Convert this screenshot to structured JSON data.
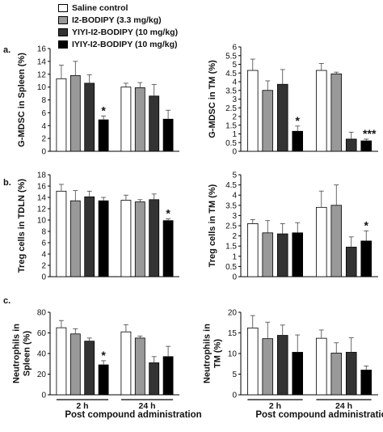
{
  "legend": [
    {
      "label": "Saline control",
      "color": "#ffffff"
    },
    {
      "label": "I2-BODIPY (3.3 mg/kg)",
      "color": "#999999"
    },
    {
      "label": "YIYI-I2-BODIPY (10 mg/kg)",
      "color": "#333333"
    },
    {
      "label": "IYIY-I2-BODIPY (10 mg/kg)",
      "color": "#000000"
    }
  ],
  "panel_letters": {
    "a": "a.",
    "b": "b.",
    "c": "c."
  },
  "x_caption": "Post compound administration",
  "chart_data": [
    {
      "type": "bar",
      "ylabel": "G-MDSC in Spleen (%)",
      "ylim": [
        0,
        16
      ],
      "yticks": [
        0,
        2,
        4,
        6,
        8,
        10,
        12,
        14,
        16
      ],
      "categories": [
        "",
        ""
      ],
      "x_tick_labels_shown": false,
      "series": [
        {
          "name": "Saline control",
          "color": "#ffffff",
          "values": [
            11.3,
            10.0
          ],
          "errors": [
            2.1,
            0.6
          ]
        },
        {
          "name": "I2-BODIPY (3.3 mg/kg)",
          "color": "#999999",
          "values": [
            11.8,
            9.9
          ],
          "errors": [
            2.2,
            0.8
          ]
        },
        {
          "name": "YIYI-I2-BODIPY (10 mg/kg)",
          "color": "#333333",
          "values": [
            10.6,
            8.6
          ],
          "errors": [
            1.3,
            1.8
          ]
        },
        {
          "name": "IYIY-I2-BODIPY (10 mg/kg)",
          "color": "#000000",
          "values": [
            4.9,
            5.0
          ],
          "errors": [
            0.6,
            1.4
          ]
        }
      ],
      "annotations": [
        {
          "group": 0,
          "series": 3,
          "text": "*"
        }
      ]
    },
    {
      "type": "bar",
      "ylabel": "G-MDSC in TM (%)",
      "ylim": [
        0,
        6
      ],
      "yticks": [
        0,
        0.5,
        1,
        1.5,
        2,
        2.5,
        3,
        3.5,
        4,
        4.5,
        5,
        5.5,
        6
      ],
      "categories": [
        "",
        ""
      ],
      "x_tick_labels_shown": false,
      "series": [
        {
          "name": "Saline control",
          "color": "#ffffff",
          "values": [
            4.65,
            4.65
          ],
          "errors": [
            0.65,
            0.4
          ]
        },
        {
          "name": "I2-BODIPY (3.3 mg/kg)",
          "color": "#999999",
          "values": [
            3.5,
            4.45
          ],
          "errors": [
            0.55,
            0.1
          ]
        },
        {
          "name": "YIYI-I2-BODIPY (10 mg/kg)",
          "color": "#333333",
          "values": [
            3.85,
            0.7
          ],
          "errors": [
            0.85,
            0.4
          ]
        },
        {
          "name": "IYIY-I2-BODIPY (10 mg/kg)",
          "color": "#000000",
          "values": [
            1.15,
            0.6
          ],
          "errors": [
            0.3,
            0.1
          ]
        }
      ],
      "annotations": [
        {
          "group": 0,
          "series": 3,
          "text": "*"
        },
        {
          "group": 1,
          "series": 3,
          "text": "***"
        }
      ]
    },
    {
      "type": "bar",
      "ylabel": "Treg cells in TDLN (%)",
      "ylim": [
        0,
        18
      ],
      "yticks": [
        0,
        2,
        4,
        6,
        8,
        10,
        12,
        14,
        16,
        18
      ],
      "categories": [
        "",
        ""
      ],
      "x_tick_labels_shown": false,
      "series": [
        {
          "name": "Saline control",
          "color": "#ffffff",
          "values": [
            15.1,
            13.5
          ],
          "errors": [
            1.2,
            0.9
          ]
        },
        {
          "name": "I2-BODIPY (3.3 mg/kg)",
          "color": "#999999",
          "values": [
            13.4,
            13.2
          ],
          "errors": [
            1.8,
            0.4
          ]
        },
        {
          "name": "YIYI-I2-BODIPY (10 mg/kg)",
          "color": "#333333",
          "values": [
            14.1,
            13.6
          ],
          "errors": [
            1.0,
            1.0
          ]
        },
        {
          "name": "IYIY-I2-BODIPY (10 mg/kg)",
          "color": "#000000",
          "values": [
            13.4,
            9.9
          ],
          "errors": [
            0.6,
            0.3
          ]
        }
      ],
      "annotations": [
        {
          "group": 1,
          "series": 3,
          "text": "*"
        }
      ]
    },
    {
      "type": "bar",
      "ylabel": "Treg cells in TM (%)",
      "ylim": [
        0,
        5
      ],
      "yticks": [
        0,
        0.5,
        1,
        1.5,
        2,
        2.5,
        3,
        3.5,
        4,
        4.5,
        5
      ],
      "categories": [
        "",
        ""
      ],
      "x_tick_labels_shown": false,
      "series": [
        {
          "name": "Saline control",
          "color": "#ffffff",
          "values": [
            2.6,
            3.4
          ],
          "errors": [
            0.2,
            0.8
          ]
        },
        {
          "name": "I2-BODIPY (3.3 mg/kg)",
          "color": "#999999",
          "values": [
            2.15,
            3.5
          ],
          "errors": [
            0.6,
            1.0
          ]
        },
        {
          "name": "YIYI-I2-BODIPY (10 mg/kg)",
          "color": "#333333",
          "values": [
            2.1,
            1.45
          ],
          "errors": [
            0.5,
            0.5
          ]
        },
        {
          "name": "IYIY-I2-BODIPY (10 mg/kg)",
          "color": "#000000",
          "values": [
            2.15,
            1.75
          ],
          "errors": [
            0.5,
            0.5
          ]
        }
      ],
      "annotations": [
        {
          "group": 1,
          "series": 3,
          "text": "*"
        }
      ]
    },
    {
      "type": "bar",
      "ylabel": "Neutrophils in Spleen (%)",
      "ylim": [
        0,
        80
      ],
      "yticks": [
        0,
        20,
        40,
        60,
        80
      ],
      "categories": [
        "2 h",
        "24 h"
      ],
      "series": [
        {
          "name": "Saline control",
          "color": "#ffffff",
          "values": [
            65,
            61
          ],
          "errors": [
            7,
            7
          ]
        },
        {
          "name": "I2-BODIPY (3.3 mg/kg)",
          "color": "#999999",
          "values": [
            59,
            55
          ],
          "errors": [
            5,
            2
          ]
        },
        {
          "name": "YIYI-I2-BODIPY (10 mg/kg)",
          "color": "#333333",
          "values": [
            52,
            31
          ],
          "errors": [
            3,
            6
          ]
        },
        {
          "name": "IYIY-I2-BODIPY (10 mg/kg)",
          "color": "#000000",
          "values": [
            29,
            37
          ],
          "errors": [
            4,
            10
          ]
        }
      ],
      "annotations": [
        {
          "group": 0,
          "series": 3,
          "text": "*"
        }
      ]
    },
    {
      "type": "bar",
      "ylabel": "Neutrophils in TM (%)",
      "ylim": [
        0,
        20
      ],
      "yticks": [
        0,
        5,
        10,
        15,
        20
      ],
      "categories": [
        "2 h",
        "24 h"
      ],
      "series": [
        {
          "name": "Saline control",
          "color": "#ffffff",
          "values": [
            16.2,
            13.7
          ],
          "errors": [
            3.0,
            2.0
          ]
        },
        {
          "name": "I2-BODIPY (3.3 mg/kg)",
          "color": "#999999",
          "values": [
            13.6,
            10.1
          ],
          "errors": [
            4.0,
            2.5
          ]
        },
        {
          "name": "YIYI-I2-BODIPY (10 mg/kg)",
          "color": "#333333",
          "values": [
            14.4,
            10.3
          ],
          "errors": [
            2.5,
            3.5
          ]
        },
        {
          "name": "IYIY-I2-BODIPY (10 mg/kg)",
          "color": "#000000",
          "values": [
            10.3,
            6.0
          ],
          "errors": [
            4.2,
            1.0
          ]
        }
      ],
      "annotations": []
    }
  ]
}
